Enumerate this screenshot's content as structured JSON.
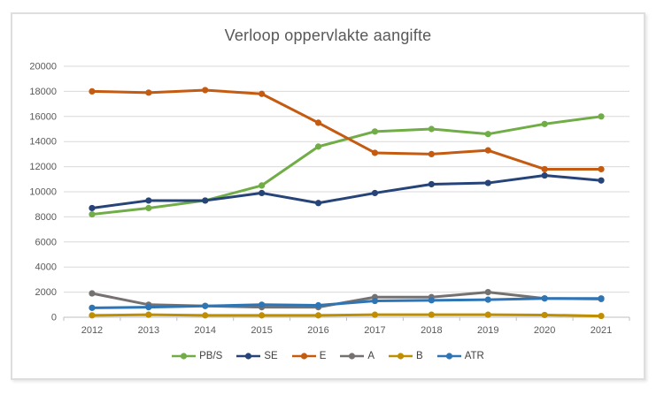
{
  "chart_data": {
    "type": "line",
    "title": "Verloop oppervlakte aangifte",
    "categories": [
      "2012",
      "2013",
      "2014",
      "2015",
      "2016",
      "2017",
      "2018",
      "2019",
      "2020",
      "2021"
    ],
    "series": [
      {
        "name": "PB/S",
        "color": "#70AD47",
        "values": [
          8200,
          8700,
          9300,
          10500,
          13600,
          14800,
          15000,
          14600,
          15400,
          16000
        ]
      },
      {
        "name": "SE",
        "color": "#264478",
        "values": [
          8700,
          9300,
          9300,
          9900,
          9100,
          9900,
          10600,
          10700,
          11300,
          10900
        ]
      },
      {
        "name": "E",
        "color": "#C55A11",
        "values": [
          18000,
          17900,
          18100,
          17800,
          15500,
          13100,
          13000,
          13300,
          11800,
          11800
        ]
      },
      {
        "name": "A",
        "color": "#767171",
        "values": [
          1900,
          1000,
          900,
          800,
          800,
          1600,
          1600,
          2000,
          1500,
          1450
        ]
      },
      {
        "name": "B",
        "color": "#BF8F00",
        "values": [
          150,
          200,
          150,
          150,
          150,
          200,
          200,
          200,
          180,
          100
        ]
      },
      {
        "name": "ATR",
        "color": "#2E75B6",
        "values": [
          750,
          800,
          900,
          1000,
          950,
          1300,
          1350,
          1400,
          1500,
          1500
        ]
      }
    ],
    "ylim": [
      0,
      20000
    ],
    "ytick_step": 2000,
    "grid": true,
    "legend_position": "bottom",
    "xlabel": "",
    "ylabel": ""
  },
  "styles": {
    "grid_color": "#D9D9D9",
    "axis_color": "#BFBFBF",
    "tick_label_color": "#595959",
    "title_color": "#595959",
    "legend_text_color": "#404040",
    "frame_border_color": "#DEDEDE",
    "background": "#FFFFFF"
  }
}
